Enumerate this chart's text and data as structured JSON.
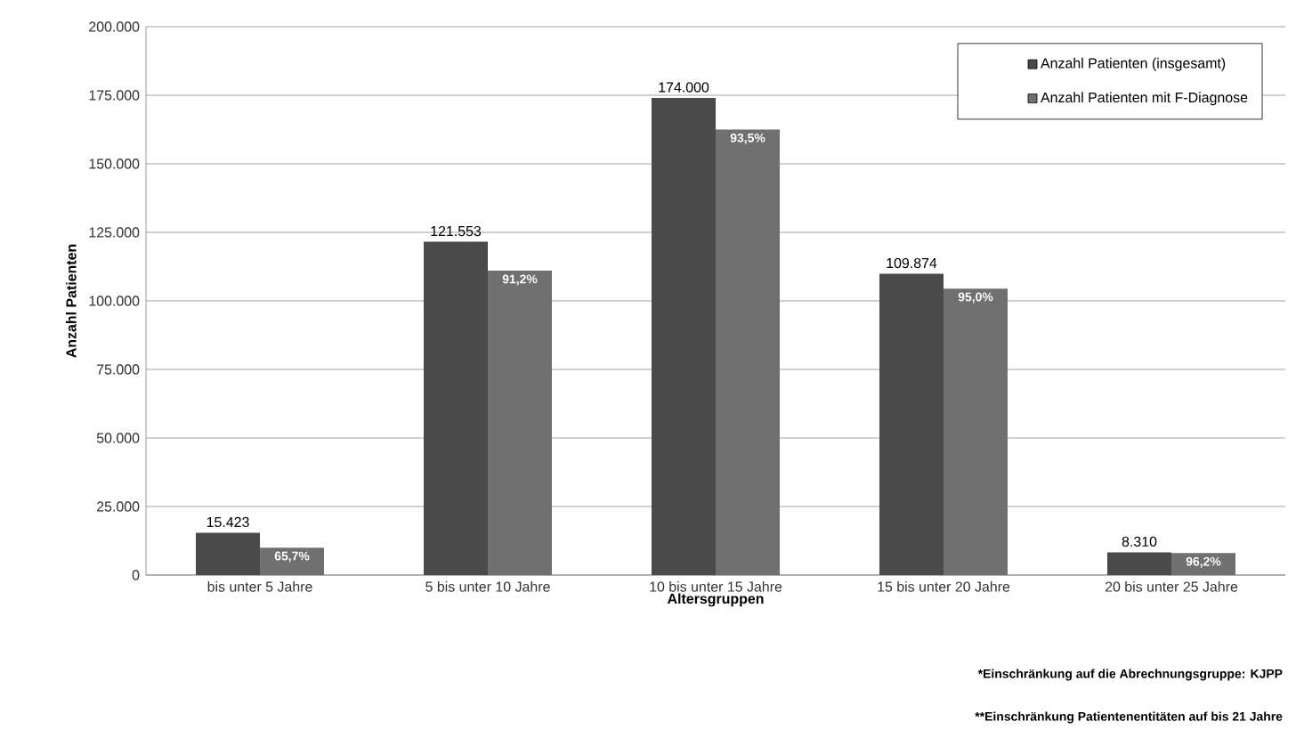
{
  "chart_data": {
    "type": "bar",
    "xlabel": "Altersgruppen",
    "ylabel": "Anzahl Patienten",
    "categories": [
      "bis unter 5 Jahre",
      "5 bis unter 10 Jahre",
      "10 bis unter 15 Jahre",
      "15 bis unter 20 Jahre",
      "20 bis unter 25 Jahre"
    ],
    "series": [
      {
        "name": "Anzahl Patienten (insgesamt)",
        "color": "#4a4a4a",
        "values": [
          15423,
          121553,
          174000,
          109874,
          8310
        ],
        "value_labels": [
          "15.423",
          "121.553",
          "174.000",
          "109.874",
          "8.310"
        ]
      },
      {
        "name": "Anzahl Patienten mit F-Diagnose",
        "color": "#707070",
        "values": [
          10000,
          111000,
          162500,
          104500,
          8000
        ]
      }
    ],
    "ylim": [
      0,
      200000
    ],
    "yticks": [
      {
        "value": 0,
        "label": "0"
      },
      {
        "value": 25000,
        "label": "25.000"
      },
      {
        "value": 50000,
        "label": "50.000"
      },
      {
        "value": 75000,
        "label": "75.000"
      },
      {
        "value": 100000,
        "label": "100.000"
      },
      {
        "value": 125000,
        "label": "125.000"
      },
      {
        "value": 150000,
        "label": "150.000"
      },
      {
        "value": 175000,
        "label": "175.000"
      },
      {
        "value": 200000,
        "label": "200.000"
      }
    ],
    "grid": "y",
    "legend": "top right",
    "annotations": [
      {
        "text": "65,7%",
        "x": "bis unter 5 Jahre",
        "y": 10000
      },
      {
        "text": "91,2%",
        "x": "5 bis unter 10 Jahre",
        "y": 111000
      },
      {
        "text": "93,5%",
        "x": "10 bis unter 15 Jahre",
        "y": 162500
      },
      {
        "text": "95,0%",
        "x": "15 bis unter 20 Jahre",
        "y": 104500
      },
      {
        "text": "96,2%",
        "x": "20 bis unter 25 Jahre",
        "y": 8000
      },
      "*Einschränkung auf die Abrechnungsgruppe: KJPP",
      "**Einschränkung Patientenentitäten auf bis 21 Jahre"
    ]
  }
}
